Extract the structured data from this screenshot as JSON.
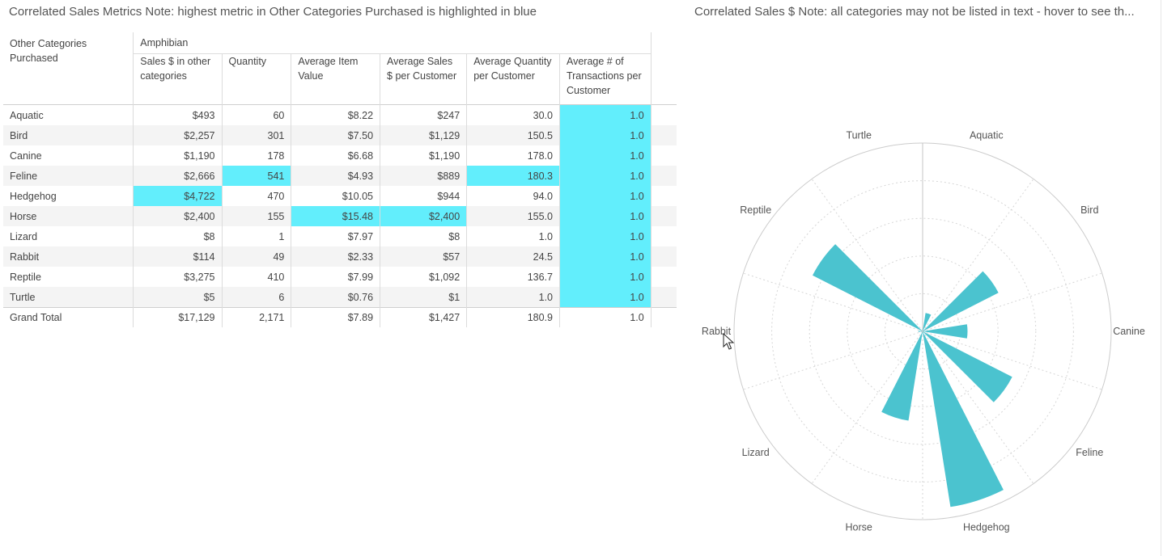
{
  "left_panel": {
    "title": "Correlated Sales Metrics Note: highest metric in Other Categories Purchased is highlighted in blue"
  },
  "right_panel": {
    "title": "Correlated Sales $ Note: all categories may not be listed in text - hover to see th..."
  },
  "colors": {
    "highlight": "#62eefc",
    "bar": "#4bc3cf",
    "grid": "#d6d6d6"
  },
  "table": {
    "row_header_label": "Other Categories Purchased",
    "group_label": "Amphibian",
    "columns": [
      "Sales $ in other categories",
      "Quantity",
      "Average Item Value",
      "Average Sales $ per Customer",
      "Average Quantity per Customer",
      "Average # of Transactions per Customer"
    ],
    "rows": [
      {
        "name": "Aquatic",
        "cells": [
          "$493",
          "60",
          "$8.22",
          "$247",
          "30.0",
          "1.0"
        ],
        "hl": [
          5
        ]
      },
      {
        "name": "Bird",
        "cells": [
          "$2,257",
          "301",
          "$7.50",
          "$1,129",
          "150.5",
          "1.0"
        ],
        "hl": [
          5
        ]
      },
      {
        "name": "Canine",
        "cells": [
          "$1,190",
          "178",
          "$6.68",
          "$1,190",
          "178.0",
          "1.0"
        ],
        "hl": [
          5
        ]
      },
      {
        "name": "Feline",
        "cells": [
          "$2,666",
          "541",
          "$4.93",
          "$889",
          "180.3",
          "1.0"
        ],
        "hl": [
          1,
          4,
          5
        ]
      },
      {
        "name": "Hedgehog",
        "cells": [
          "$4,722",
          "470",
          "$10.05",
          "$944",
          "94.0",
          "1.0"
        ],
        "hl": [
          0,
          5
        ]
      },
      {
        "name": "Horse",
        "cells": [
          "$2,400",
          "155",
          "$15.48",
          "$2,400",
          "155.0",
          "1.0"
        ],
        "hl": [
          2,
          3,
          5
        ]
      },
      {
        "name": "Lizard",
        "cells": [
          "$8",
          "1",
          "$7.97",
          "$8",
          "1.0",
          "1.0"
        ],
        "hl": [
          5
        ]
      },
      {
        "name": "Rabbit",
        "cells": [
          "$114",
          "49",
          "$2.33",
          "$57",
          "24.5",
          "1.0"
        ],
        "hl": [
          5
        ]
      },
      {
        "name": "Reptile",
        "cells": [
          "$3,275",
          "410",
          "$7.99",
          "$1,092",
          "136.7",
          "1.0"
        ],
        "hl": [
          5
        ]
      },
      {
        "name": "Turtle",
        "cells": [
          "$5",
          "6",
          "$0.76",
          "$1",
          "1.0",
          "1.0"
        ],
        "hl": [
          5
        ]
      }
    ],
    "total": {
      "name": "Grand Total",
      "cells": [
        "$17,129",
        "2,171",
        "$7.89",
        "$1,427",
        "180.9",
        "1.0"
      ]
    }
  },
  "chart_data": {
    "type": "polar-bar",
    "title": "Correlated Sales $",
    "categories": [
      "Aquatic",
      "Bird",
      "Canine",
      "Feline",
      "Hedgehog",
      "Horse",
      "Lizard",
      "Rabbit",
      "Reptile",
      "Turtle"
    ],
    "values": [
      493,
      2257,
      1190,
      2666,
      4722,
      2400,
      8,
      114,
      3275,
      5
    ],
    "rmax": 5000,
    "grid_rings": 5
  }
}
